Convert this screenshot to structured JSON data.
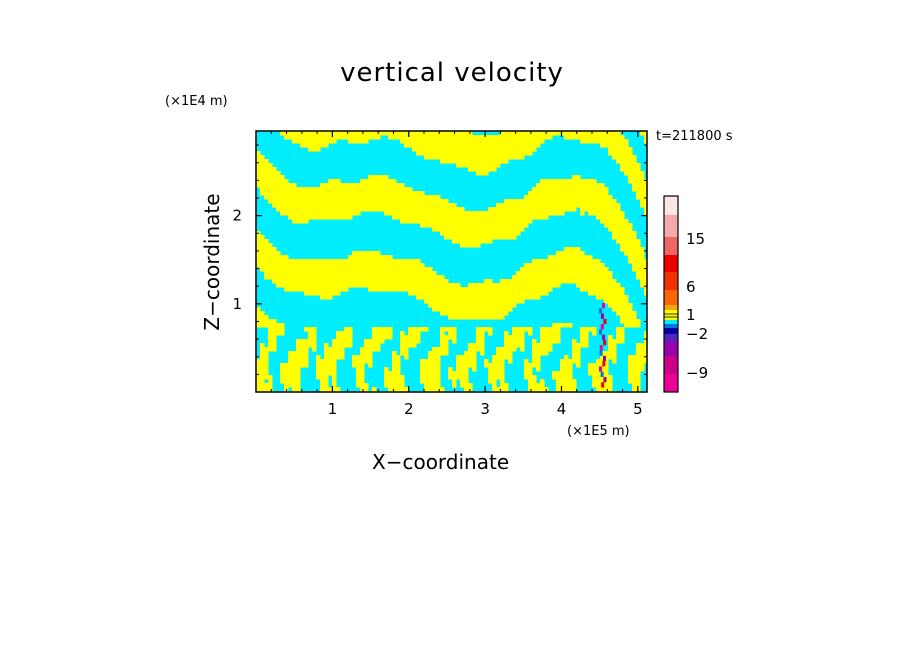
{
  "chart_data": {
    "type": "heatmap",
    "title": "vertical velocity",
    "xlabel": "X−coordinate",
    "ylabel": "Z−coordinate",
    "x_unit": "(×1E5 m)",
    "y_unit": "(×1E4 m)",
    "time_label": "t=211800 s",
    "xlim": [
      0,
      5.12
    ],
    "ylim": [
      0,
      2.96
    ],
    "x_ticks": [
      1,
      2,
      3,
      4,
      5
    ],
    "y_ticks": [
      1,
      2
    ],
    "x_tick_labels": [
      "1",
      "2",
      "3",
      "4",
      "5"
    ],
    "y_tick_labels": [
      "1",
      "2"
    ],
    "colorbar": {
      "colors": [
        "#ee0099",
        "#cc0088",
        "#9900aa",
        "#5522bb",
        "#0000aa",
        "#0077dd",
        "#00eeff",
        "#ffff00",
        "#eeaa00",
        "#ff6600",
        "#ee3300",
        "#ee0000",
        "#ee6666",
        "#f5aaaa",
        "#fbe6e6"
      ],
      "tick_labels": [
        "15",
        "6",
        "1",
        "−2",
        "−9"
      ]
    },
    "description_values": {
      "dominant_positive_color": "#ffff00",
      "dominant_negative_color": "#00eeff"
    }
  },
  "colors": {
    "frame": "#000000",
    "background": "#ffffff"
  }
}
